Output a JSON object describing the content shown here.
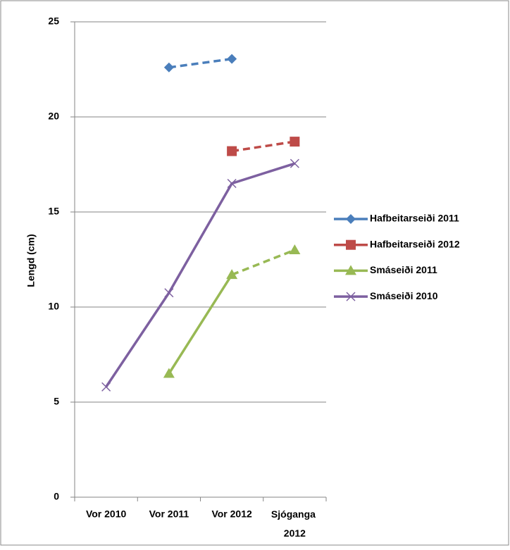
{
  "chart_data": {
    "type": "line",
    "y_label": "Lengd (cm)",
    "categories": [
      "Vor 2010",
      "Vor 2011",
      "Vor 2012",
      "Sjóganga 2012"
    ],
    "ylim": [
      0,
      25
    ],
    "yticks": [
      0,
      5,
      10,
      15,
      20,
      25
    ],
    "grid": true,
    "legend": "right",
    "series": [
      {
        "name": "Hafbeitarseiði 2011",
        "color": "#4a7ebb",
        "marker": "diamond",
        "dashed_from": 0,
        "values": [
          null,
          22.6,
          23.05,
          null
        ]
      },
      {
        "name": "Hafbeitarseiði 2012",
        "color": "#be4b48",
        "marker": "square",
        "dashed_from": 0,
        "values": [
          null,
          null,
          18.2,
          18.7
        ]
      },
      {
        "name": "Smáseiði 2011",
        "color": "#98b954",
        "marker": "triangle",
        "dashed_from": 2,
        "values": [
          null,
          6.5,
          11.7,
          13.0
        ]
      },
      {
        "name": "Smáseiði 2010",
        "color": "#7d60a0",
        "marker": "x",
        "values": [
          5.8,
          10.75,
          16.5,
          17.55
        ]
      }
    ]
  }
}
